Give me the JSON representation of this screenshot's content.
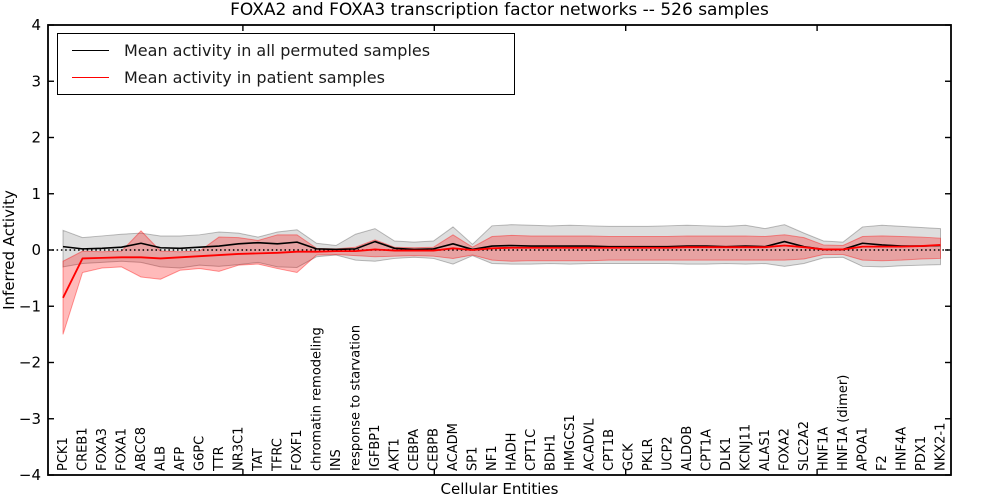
{
  "title": "FOXA2 and FOXA3 transcription factor networks -- 526 samples",
  "axes": {
    "ylabel": "Inferred Activity",
    "xlabel": "Cellular Entities"
  },
  "legend": {
    "position": "upper left",
    "items": [
      {
        "label": "Mean activity in all permuted samples",
        "color": "#000000"
      },
      {
        "label": "Mean activity in patient samples",
        "color": "#ff0000"
      }
    ]
  },
  "chart_data": {
    "type": "line",
    "title": "FOXA2 and FOXA3 transcription factor networks -- 526 samples",
    "xlabel": "Cellular Entities",
    "ylabel": "Inferred Activity",
    "ylim": [
      -4,
      4
    ],
    "yticks": [
      -4,
      -3,
      -2,
      -1,
      0,
      1,
      2,
      3,
      4
    ],
    "xticks": [
      10,
      20,
      30,
      40
    ],
    "grid": false,
    "legend_position": "upper left",
    "zero_line": {
      "y": 0,
      "style": "dotted",
      "color": "#000000"
    },
    "categories": [
      "PCK1",
      "CREB1",
      "FOXA3",
      "FOXA1",
      "ABCC8",
      "ALB",
      "AFP",
      "G6PC",
      "TTR",
      "NR3C1",
      "TAT",
      "TFRC",
      "FOXF1",
      "chromatin remodeling",
      "INS",
      "response to starvation",
      "IGFBP1",
      "AKT1",
      "CEBPA",
      "CEBPB",
      "ACADM",
      "SP1",
      "NF1",
      "HADH",
      "CPT1C",
      "BDH1",
      "HMGCS1",
      "ACADVL",
      "CPT1B",
      "GCK",
      "PKLR",
      "UCP2",
      "ALDOB",
      "CPT1A",
      "DLK1",
      "KCNJ11",
      "ALAS1",
      "FOXA2",
      "SLC2A2",
      "HNF1A",
      "HNF1A (dimer)",
      "APOA1",
      "F2",
      "HNF4A",
      "PDX1",
      "NKX2-1"
    ],
    "series": [
      {
        "name": "Mean activity in all permuted samples",
        "color": "#000000",
        "band_color": "#000000",
        "band_opacity": 0.13,
        "values": [
          0.06,
          0.02,
          0.03,
          0.05,
          0.12,
          0.04,
          0.03,
          0.05,
          0.07,
          0.11,
          0.13,
          0.11,
          0.14,
          0.02,
          0.01,
          0.02,
          0.15,
          0.03,
          0.01,
          0.02,
          0.11,
          0.01,
          0.07,
          0.08,
          0.07,
          0.07,
          0.07,
          0.07,
          0.06,
          0.06,
          0.06,
          0.06,
          0.07,
          0.07,
          0.06,
          0.07,
          0.06,
          0.15,
          0.06,
          0.01,
          0.01,
          0.12,
          0.09,
          0.07,
          0.07,
          0.08
        ],
        "band_upper": [
          0.35,
          0.22,
          0.25,
          0.28,
          0.3,
          0.25,
          0.25,
          0.27,
          0.32,
          0.3,
          0.23,
          0.32,
          0.36,
          0.12,
          0.08,
          0.28,
          0.38,
          0.16,
          0.14,
          0.16,
          0.41,
          0.1,
          0.43,
          0.45,
          0.44,
          0.43,
          0.44,
          0.43,
          0.42,
          0.42,
          0.42,
          0.43,
          0.44,
          0.43,
          0.42,
          0.44,
          0.38,
          0.45,
          0.3,
          0.16,
          0.14,
          0.41,
          0.44,
          0.42,
          0.4,
          0.38
        ],
        "band_lower": [
          -0.3,
          -0.24,
          -0.22,
          -0.2,
          -0.22,
          -0.3,
          -0.32,
          -0.27,
          -0.29,
          -0.26,
          -0.22,
          -0.3,
          -0.31,
          -0.12,
          -0.09,
          -0.18,
          -0.2,
          -0.15,
          -0.13,
          -0.15,
          -0.25,
          -0.1,
          -0.24,
          -0.25,
          -0.25,
          -0.24,
          -0.25,
          -0.24,
          -0.24,
          -0.24,
          -0.24,
          -0.24,
          -0.25,
          -0.25,
          -0.24,
          -0.25,
          -0.24,
          -0.29,
          -0.24,
          -0.14,
          -0.13,
          -0.29,
          -0.3,
          -0.28,
          -0.27,
          -0.26
        ]
      },
      {
        "name": "Mean activity in patient samples",
        "color": "#ff0000",
        "band_color": "#ff0000",
        "band_opacity": 0.27,
        "values": [
          -0.85,
          -0.15,
          -0.14,
          -0.13,
          -0.13,
          -0.15,
          -0.13,
          -0.11,
          -0.09,
          -0.07,
          -0.06,
          -0.05,
          -0.03,
          -0.03,
          -0.02,
          -0.02,
          0.01,
          -0.01,
          -0.01,
          -0.01,
          0.03,
          0.0,
          0.03,
          0.04,
          0.04,
          0.04,
          0.04,
          0.04,
          0.04,
          0.04,
          0.04,
          0.04,
          0.05,
          0.05,
          0.05,
          0.05,
          0.05,
          0.08,
          0.05,
          0.01,
          0.01,
          0.06,
          0.06,
          0.06,
          0.07,
          0.09
        ],
        "band_upper": [
          -0.2,
          -0.02,
          -0.03,
          -0.02,
          0.34,
          -0.02,
          -0.03,
          -0.02,
          0.23,
          0.22,
          0.17,
          0.27,
          0.27,
          0.03,
          0.02,
          0.05,
          0.18,
          0.05,
          0.04,
          0.05,
          0.27,
          0.05,
          0.24,
          0.26,
          0.25,
          0.25,
          0.25,
          0.25,
          0.24,
          0.24,
          0.24,
          0.24,
          0.25,
          0.25,
          0.25,
          0.25,
          0.24,
          0.27,
          0.22,
          0.09,
          0.08,
          0.24,
          0.25,
          0.24,
          0.23,
          0.21
        ],
        "band_lower": [
          -1.5,
          -0.4,
          -0.32,
          -0.3,
          -0.48,
          -0.52,
          -0.36,
          -0.33,
          -0.38,
          -0.27,
          -0.25,
          -0.33,
          -0.4,
          -0.09,
          -0.08,
          -0.1,
          -0.12,
          -0.11,
          -0.1,
          -0.11,
          -0.15,
          -0.09,
          -0.18,
          -0.2,
          -0.19,
          -0.19,
          -0.19,
          -0.19,
          -0.18,
          -0.18,
          -0.18,
          -0.18,
          -0.18,
          -0.18,
          -0.18,
          -0.18,
          -0.18,
          -0.18,
          -0.16,
          -0.08,
          -0.08,
          -0.18,
          -0.19,
          -0.18,
          -0.16,
          -0.15
        ]
      }
    ]
  }
}
